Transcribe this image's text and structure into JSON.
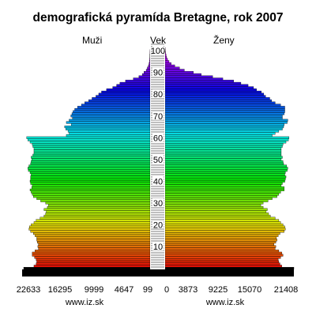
{
  "chart_data": {
    "type": "bar",
    "title": "demografická pyramída Bretagne, rok 2007",
    "left_label": "Muži",
    "center_label": "Vek",
    "right_label": "Ženy",
    "source_left": "www.iz.sk",
    "source_right": "www.iz.sk",
    "left_ticks": [
      "22633",
      "16295",
      "9999",
      "4647",
      "99"
    ],
    "right_ticks": [
      "0",
      "3873",
      "9225",
      "15070",
      "21408"
    ],
    "age_ticks": [
      10,
      20,
      30,
      40,
      50,
      60,
      70,
      80,
      90,
      100
    ],
    "age_range": [
      0,
      101
    ],
    "male_xlim": [
      0,
      22633
    ],
    "female_xlim": [
      0,
      21408
    ],
    "series": [
      {
        "name": "Muži",
        "values": [
          22633,
          20800,
          20400,
          20300,
          20400,
          20700,
          21100,
          21100,
          20600,
          20000,
          20100,
          20000,
          20200,
          20300,
          20300,
          20600,
          20900,
          21400,
          21700,
          21600,
          21300,
          20800,
          20400,
          19700,
          19000,
          18700,
          18600,
          19000,
          18400,
          18200,
          18700,
          19600,
          20300,
          20900,
          21100,
          21300,
          21500,
          21200,
          21100,
          21400,
          21500,
          21400,
          21400,
          21300,
          21500,
          21800,
          21900,
          21700,
          21400,
          21300,
          21200,
          21300,
          21000,
          20800,
          20800,
          20800,
          21000,
          21100,
          21500,
          21900,
          22100,
          15000,
          14500,
          14700,
          15100,
          15300,
          14100,
          15000,
          14500,
          13900,
          14200,
          14000,
          13800,
          13500,
          13000,
          12300,
          11700,
          11000,
          10400,
          9700,
          9200,
          8700,
          7800,
          6700,
          6000,
          5400,
          4400,
          3000,
          2000,
          1400,
          1100,
          700,
          500,
          300,
          200,
          120,
          80,
          50,
          30,
          20,
          10,
          0
        ]
      },
      {
        "name": "Ženy",
        "values": [
          21408,
          19400,
          19100,
          18900,
          18800,
          19200,
          19600,
          19400,
          18900,
          18300,
          18400,
          18100,
          18400,
          18600,
          18500,
          18800,
          19100,
          19800,
          20000,
          19900,
          19600,
          19200,
          18900,
          18300,
          17500,
          17200,
          16800,
          17000,
          16300,
          15900,
          16300,
          17100,
          17800,
          18600,
          18900,
          19200,
          19800,
          19800,
          19300,
          19500,
          19900,
          20000,
          20100,
          19900,
          20000,
          20300,
          20400,
          20200,
          19700,
          19600,
          19300,
          19500,
          19300,
          19300,
          19300,
          19300,
          19500,
          19600,
          20100,
          20500,
          20600,
          17800,
          18300,
          18900,
          19500,
          19700,
          19800,
          20300,
          20400,
          19500,
          19500,
          19800,
          19900,
          19900,
          19900,
          19200,
          18300,
          17700,
          17400,
          16700,
          16400,
          16000,
          15200,
          14700,
          13800,
          12600,
          11400,
          9600,
          7900,
          6000,
          4700,
          3200,
          2400,
          1600,
          1000,
          650,
          400,
          250,
          150,
          80,
          40,
          20
        ]
      }
    ]
  }
}
